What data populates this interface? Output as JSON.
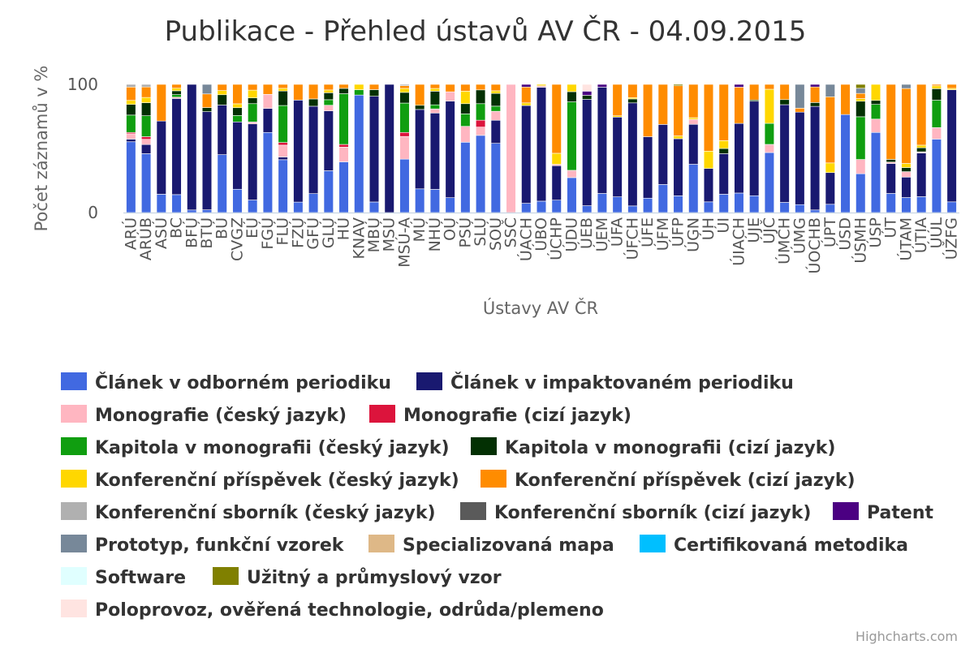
{
  "chart_data": {
    "type": "bar",
    "stacking": "percent",
    "title": "Publikace - Přehled ústavů AV ČR - 04.09.2015",
    "xlabel": "Ústavy AV ČR",
    "ylabel": "Počet záznamů v %",
    "ylim": [
      0,
      100
    ],
    "yticks": [
      0,
      100
    ],
    "grid": false,
    "legend_position": "bottom",
    "credits": "Highcharts.com",
    "categories": [
      "ARÚ",
      "ARÚB",
      "ASÚ",
      "BC",
      "BFÚ",
      "BTÚ",
      "BÚ",
      "CVGZ",
      "EÚ",
      "FGÚ",
      "FLÚ",
      "FZÚ",
      "GFÚ",
      "GLÚ",
      "HÚ",
      "KNAV",
      "MBÚ",
      "MSÚ",
      "MSÚ-A",
      "MÚ",
      "NHÚ",
      "OÚ",
      "PSÚ",
      "SLÚ",
      "SOÚ",
      "SSČ",
      "ÚACH",
      "ÚBO",
      "ÚCHP",
      "ÚDU",
      "ÚEB",
      "ÚEM",
      "ÚFA",
      "ÚFCH",
      "ÚFE",
      "ÚFM",
      "ÚFP",
      "ÚGN",
      "ÚH",
      "ÚI",
      "ÚIACH",
      "ÚJE",
      "ÚJČ",
      "ÚMCH",
      "ÚMG",
      "ÚOCHB",
      "ÚPT",
      "ÚSD",
      "ÚSMH",
      "ÚSP",
      "ÚT",
      "ÚTAM",
      "ÚTIA",
      "ÚÚL",
      "ÚŽFG"
    ],
    "series": [
      {
        "name": "Článek v odborném periodiku",
        "color": "#4169E1",
        "values": [
          53,
          45,
          14,
          14,
          2,
          2,
          28,
          18,
          13,
          40,
          40,
          8,
          13,
          30,
          38,
          88,
          8,
          0,
          40,
          17,
          17,
          8,
          62,
          56,
          54,
          0,
          7,
          8,
          9,
          24,
          5,
          14,
          12,
          5,
          11,
          21,
          12,
          29,
          8,
          14,
          14,
          13,
          37,
          8,
          6,
          2,
          6,
          13,
          30,
          60,
          14,
          11,
          12,
          51,
          8
        ]
      },
      {
        "name": "Článek v impaktovaném periodiku",
        "color": "#191970",
        "values": [
          2,
          7,
          56,
          75,
          97,
          72,
          24,
          52,
          79,
          12,
          2,
          78,
          60,
          43,
          0,
          0,
          80,
          100,
          0,
          57,
          56,
          52,
          0,
          0,
          18,
          0,
          74,
          80,
          25,
          0,
          78,
          78,
          61,
          78,
          47,
          45,
          41,
          24,
          25,
          31,
          50,
          73,
          0,
          77,
          70,
          80,
          23,
          0,
          0,
          0,
          22,
          15,
          33,
          0,
          84
        ]
      },
      {
        "name": "Monografie (český jazyk)",
        "color": "#FFB6C1",
        "values": [
          4,
          4,
          0,
          1,
          0,
          0,
          0,
          0,
          2,
          7,
          9,
          0,
          0,
          4,
          11,
          0,
          0,
          0,
          17,
          0,
          3,
          5,
          14,
          6,
          7,
          100,
          0,
          1,
          1,
          5,
          0,
          0,
          0,
          0,
          0,
          0,
          0,
          3,
          0,
          0,
          0,
          0,
          5,
          0,
          0,
          0,
          0,
          0,
          11,
          10,
          1,
          4,
          1,
          8,
          0
        ]
      },
      {
        "name": "Monografie (cizí jazyk)",
        "color": "#DC143C",
        "values": [
          1,
          2,
          0,
          0,
          0,
          0,
          0,
          0,
          0,
          0,
          2,
          0,
          0,
          0,
          2,
          0,
          0,
          0,
          3,
          0,
          0,
          0,
          0,
          5,
          0,
          0,
          0,
          0,
          0,
          0,
          0,
          0,
          0,
          0,
          0,
          0,
          0,
          0,
          0,
          0,
          0,
          0,
          0,
          0,
          0,
          0,
          0,
          0,
          0,
          0,
          0,
          0,
          0,
          0,
          0
        ]
      },
      {
        "name": "Kapitola v monografii (český jazyk)",
        "color": "#109E10",
        "values": [
          13,
          16,
          0,
          2,
          0,
          0,
          0,
          5,
          19,
          0,
          28,
          0,
          0,
          4,
          38,
          4,
          0,
          0,
          22,
          0,
          3,
          0,
          11,
          12,
          4,
          0,
          0,
          0,
          0,
          47,
          0,
          0,
          0,
          0,
          0,
          0,
          0,
          0,
          0,
          0,
          0,
          0,
          13,
          0,
          0,
          0,
          0,
          0,
          33,
          11,
          0,
          0,
          0,
          19,
          0
        ]
      },
      {
        "name": "Kapitola v monografii (cizí jazyk)",
        "color": "#033003",
        "values": [
          8,
          10,
          0,
          3,
          0,
          3,
          5,
          6,
          6,
          0,
          11,
          0,
          5,
          5,
          4,
          0,
          5,
          0,
          8,
          3,
          10,
          0,
          9,
          10,
          10,
          0,
          0,
          0,
          0,
          7,
          3,
          0,
          0,
          3,
          0,
          0,
          0,
          0,
          0,
          4,
          0,
          1,
          0,
          4,
          0,
          3,
          0,
          0,
          12,
          3,
          2,
          3,
          3,
          8,
          0
        ]
      },
      {
        "name": "Konferenční příspěvek (český jazyk)",
        "color": "#FFD700",
        "values": [
          3,
          4,
          0,
          2,
          0,
          0,
          2,
          3,
          8,
          0,
          2,
          0,
          0,
          2,
          0,
          4,
          0,
          0,
          3,
          0,
          2,
          0,
          11,
          0,
          2,
          0,
          2,
          1,
          8,
          5,
          0,
          0,
          1,
          1,
          0,
          0,
          2,
          1,
          13,
          6,
          0,
          0,
          21,
          0,
          0,
          0,
          7,
          0,
          2,
          12,
          0,
          3,
          2,
          2,
          1
        ]
      },
      {
        "name": "Konferenční příspěvek (cizí jazyk)",
        "color": "#FF8C00",
        "values": [
          10,
          8,
          28,
          3,
          0,
          10,
          3,
          15,
          6,
          5,
          3,
          12,
          10,
          4,
          3,
          0,
          4,
          0,
          2,
          15,
          3,
          4,
          6,
          4,
          5,
          0,
          12,
          0,
          50,
          0,
          0,
          0,
          24,
          10,
          40,
          30,
          36,
          20,
          50,
          43,
          26,
          12,
          3,
          12,
          3,
          12,
          48,
          4,
          4,
          0,
          55,
          55,
          46,
          1,
          3
        ]
      },
      {
        "name": "Konferenční sborník (český jazyk)",
        "color": "#B0B0B0",
        "values": [
          2,
          2,
          0,
          0,
          0,
          0,
          0,
          0,
          0,
          0,
          0,
          0,
          0,
          0,
          0,
          0,
          0,
          0,
          1,
          0,
          0,
          0,
          0,
          0,
          0,
          0,
          0,
          0,
          0,
          0,
          0,
          0,
          0,
          0,
          0,
          0,
          0,
          0,
          0,
          0,
          0,
          0,
          0,
          0,
          0,
          0,
          0,
          0,
          0,
          0,
          0,
          0,
          0,
          0,
          0
        ]
      },
      {
        "name": "Konferenční sborník (cizí jazyk)",
        "color": "#5A5A5A",
        "values": [
          0,
          0,
          0,
          0,
          0,
          0,
          0,
          0,
          0,
          0,
          0,
          0,
          0,
          0,
          0,
          0,
          0,
          0,
          0,
          0,
          0,
          0,
          0,
          0,
          0,
          0,
          0,
          0,
          0,
          0,
          0,
          0,
          0,
          0,
          0,
          0,
          0,
          0,
          0,
          0,
          0,
          0,
          0,
          0,
          0,
          0,
          0,
          0,
          0,
          0,
          0,
          0,
          0,
          0,
          0
        ]
      },
      {
        "name": "Patent",
        "color": "#4B0082",
        "values": [
          0,
          0,
          0,
          0,
          0,
          0,
          0,
          0,
          0,
          0,
          0,
          0,
          0,
          0,
          0,
          0,
          0,
          0,
          0,
          0,
          0,
          0,
          0,
          0,
          0,
          0,
          2,
          0,
          0,
          0,
          3,
          2,
          0,
          0,
          0,
          0,
          0,
          0,
          0,
          0,
          2,
          0,
          0,
          0,
          0,
          2,
          0,
          0,
          0,
          0,
          0,
          0,
          0,
          0,
          0
        ]
      },
      {
        "name": "Prototyp, funkční vzorek",
        "color": "#778899",
        "values": [
          0,
          0,
          0,
          0,
          0,
          7,
          0,
          0,
          0,
          0,
          0,
          0,
          0,
          0,
          0,
          0,
          0,
          0,
          0,
          0,
          0,
          0,
          0,
          0,
          0,
          0,
          0,
          0,
          0,
          0,
          0,
          0,
          0,
          0,
          0,
          0,
          0,
          0,
          0,
          0,
          0,
          0,
          0,
          0,
          18,
          0,
          9,
          0,
          4,
          0,
          0,
          3,
          0,
          0,
          0
        ]
      },
      {
        "name": "Specializovaná mapa",
        "color": "#DEB887",
        "values": [
          0,
          0,
          0,
          0,
          0,
          0,
          0,
          0,
          0,
          0,
          0,
          0,
          0,
          0,
          0,
          0,
          0,
          0,
          0,
          0,
          0,
          0,
          0,
          0,
          0,
          0,
          0,
          0,
          0,
          0,
          0,
          0,
          0,
          0,
          0,
          0,
          0,
          0,
          0,
          0,
          0,
          0,
          0,
          0,
          0,
          0,
          0,
          0,
          0,
          0,
          0,
          0,
          0,
          0,
          0
        ]
      },
      {
        "name": "Certifikovaná metodika",
        "color": "#00BFFF",
        "values": [
          0,
          0,
          0,
          0,
          0,
          0,
          0,
          0,
          0,
          0,
          0,
          0,
          0,
          0,
          0,
          0,
          0,
          0,
          0,
          0,
          0,
          0,
          0,
          0,
          0,
          0,
          0,
          0,
          0,
          0,
          0,
          0,
          0,
          0,
          0,
          0,
          0,
          0,
          0,
          0,
          0,
          0,
          0,
          0,
          0,
          0,
          0,
          0,
          0,
          0,
          0,
          0,
          0,
          0,
          0
        ]
      },
      {
        "name": "Software",
        "color": "#E0FFFF",
        "values": [
          0,
          0,
          0,
          0,
          0,
          0,
          0,
          0,
          0,
          0,
          0,
          0,
          0,
          0,
          0,
          0,
          0,
          0,
          0,
          0,
          0,
          0,
          0,
          0,
          0,
          0,
          0,
          0,
          0,
          0,
          0,
          0,
          0,
          0,
          0,
          0,
          0,
          0,
          0,
          0,
          0,
          0,
          0,
          0,
          0,
          0,
          0,
          0,
          0,
          0,
          0,
          0,
          0,
          0,
          0
        ]
      },
      {
        "name": "Užitný a průmyslový vzor",
        "color": "#808000",
        "values": [
          0,
          0,
          0,
          0,
          0,
          0,
          0,
          0,
          0,
          0,
          0,
          0,
          0,
          0,
          0,
          0,
          0,
          0,
          0,
          0,
          0,
          0,
          0,
          0,
          0,
          0,
          0,
          0,
          0,
          0,
          0,
          0,
          0,
          0,
          0,
          0,
          1,
          0,
          0,
          0,
          0,
          0,
          0,
          0,
          0,
          0,
          0,
          0,
          3,
          0,
          0,
          0,
          0,
          0,
          0
        ]
      },
      {
        "name": "Poloprovoz, ověřená technologie, odrůda/plemeno",
        "color": "#FFE4E1",
        "values": [
          0,
          0,
          0,
          0,
          0,
          0,
          0,
          0,
          0,
          0,
          0,
          0,
          0,
          0,
          0,
          0,
          0,
          0,
          0,
          0,
          0,
          0,
          0,
          0,
          0,
          0,
          0,
          0,
          0,
          0,
          5,
          0,
          0,
          0,
          0,
          0,
          0,
          0,
          0,
          0,
          0,
          0,
          0,
          0,
          0,
          0,
          0,
          0,
          0,
          0,
          0,
          0,
          0,
          0,
          0
        ]
      }
    ]
  }
}
